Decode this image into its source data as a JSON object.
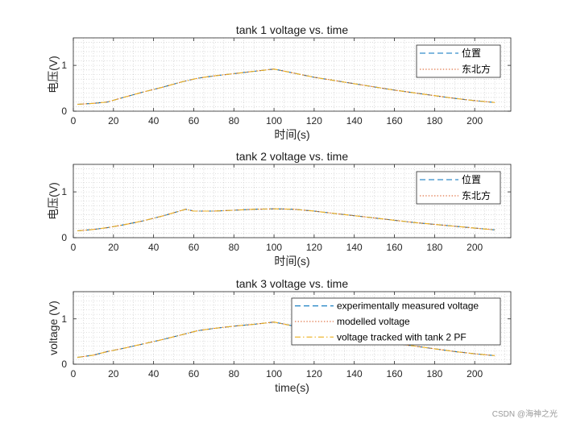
{
  "watermark": "CSDN @海神之光",
  "colors": {
    "measured": "#0072BD",
    "modelled": "#D95319",
    "tracked": "#EDB120",
    "axis": "#262626",
    "grid": "#b0b0b0"
  },
  "chart_data": [
    {
      "type": "line",
      "title": "tank 1 voltage vs. time",
      "xlabel": "时间(s)",
      "ylabel": "电压(V)",
      "xlim": [
        0,
        218
      ],
      "ylim": [
        0,
        1.6
      ],
      "xticks": [
        0,
        20,
        40,
        60,
        80,
        100,
        120,
        140,
        160,
        180,
        200
      ],
      "yticks": [
        0,
        1
      ],
      "grid": true,
      "legend_position": "top-right",
      "series": [
        {
          "name": "位置",
          "style": "dashed",
          "color": "#0072BD",
          "x": [
            2,
            10,
            17,
            25,
            35,
            45,
            55,
            62,
            70,
            80,
            90,
            100,
            110,
            120,
            130,
            140,
            150,
            160,
            170,
            180,
            190,
            200,
            210
          ],
          "y": [
            0.15,
            0.17,
            0.2,
            0.3,
            0.42,
            0.53,
            0.65,
            0.72,
            0.77,
            0.82,
            0.87,
            0.92,
            0.83,
            0.74,
            0.67,
            0.6,
            0.53,
            0.46,
            0.4,
            0.34,
            0.28,
            0.23,
            0.19
          ]
        },
        {
          "name": "东北方",
          "style": "dotted",
          "color": "#D95319",
          "x": [
            2,
            10,
            17,
            25,
            35,
            45,
            55,
            62,
            70,
            80,
            90,
            100,
            110,
            120,
            130,
            140,
            150,
            160,
            170,
            180,
            190,
            200,
            210
          ],
          "y": [
            0.15,
            0.17,
            0.2,
            0.3,
            0.42,
            0.53,
            0.65,
            0.72,
            0.77,
            0.82,
            0.87,
            0.92,
            0.83,
            0.74,
            0.67,
            0.6,
            0.53,
            0.46,
            0.4,
            0.34,
            0.28,
            0.23,
            0.19
          ]
        },
        {
          "name": "",
          "style": "dashdot",
          "color": "#EDB120",
          "in_legend": false,
          "x": [
            2,
            10,
            17,
            25,
            35,
            45,
            55,
            62,
            70,
            80,
            90,
            100,
            110,
            120,
            130,
            140,
            150,
            160,
            170,
            180,
            190,
            200,
            210
          ],
          "y": [
            0.15,
            0.17,
            0.2,
            0.3,
            0.42,
            0.53,
            0.65,
            0.72,
            0.77,
            0.82,
            0.87,
            0.92,
            0.83,
            0.74,
            0.67,
            0.6,
            0.53,
            0.46,
            0.4,
            0.34,
            0.28,
            0.23,
            0.19
          ]
        }
      ]
    },
    {
      "type": "line",
      "title": "tank 2 voltage vs. time",
      "xlabel": "时间(s)",
      "ylabel": "电压(V)",
      "xlim": [
        0,
        218
      ],
      "ylim": [
        0,
        1.6
      ],
      "xticks": [
        0,
        20,
        40,
        60,
        80,
        100,
        120,
        140,
        160,
        180,
        200
      ],
      "yticks": [
        0,
        1
      ],
      "grid": true,
      "legend_position": "top-right",
      "series": [
        {
          "name": "位置",
          "style": "dashed",
          "color": "#0072BD",
          "x": [
            2,
            10,
            17,
            25,
            35,
            45,
            56,
            60,
            70,
            80,
            90,
            100,
            110,
            120,
            130,
            140,
            150,
            160,
            170,
            180,
            190,
            200,
            210
          ],
          "y": [
            0.15,
            0.18,
            0.22,
            0.28,
            0.37,
            0.48,
            0.62,
            0.58,
            0.58,
            0.6,
            0.62,
            0.63,
            0.62,
            0.58,
            0.53,
            0.48,
            0.43,
            0.38,
            0.33,
            0.29,
            0.25,
            0.21,
            0.17
          ]
        },
        {
          "name": "东北方",
          "style": "dotted",
          "color": "#D95319",
          "x": [
            2,
            10,
            17,
            25,
            35,
            45,
            56,
            60,
            70,
            80,
            90,
            100,
            110,
            120,
            130,
            140,
            150,
            160,
            170,
            180,
            190,
            200,
            210
          ],
          "y": [
            0.15,
            0.18,
            0.22,
            0.28,
            0.37,
            0.48,
            0.62,
            0.58,
            0.58,
            0.6,
            0.62,
            0.63,
            0.62,
            0.58,
            0.53,
            0.48,
            0.43,
            0.38,
            0.33,
            0.29,
            0.25,
            0.21,
            0.17
          ]
        },
        {
          "name": "",
          "style": "dashdot",
          "color": "#EDB120",
          "in_legend": false,
          "x": [
            2,
            10,
            17,
            25,
            35,
            45,
            56,
            60,
            70,
            80,
            90,
            100,
            110,
            120,
            130,
            140,
            150,
            160,
            170,
            180,
            190,
            200,
            210
          ],
          "y": [
            0.15,
            0.18,
            0.22,
            0.28,
            0.37,
            0.48,
            0.62,
            0.58,
            0.58,
            0.6,
            0.62,
            0.63,
            0.62,
            0.58,
            0.53,
            0.48,
            0.43,
            0.38,
            0.33,
            0.29,
            0.25,
            0.21,
            0.17
          ]
        }
      ]
    },
    {
      "type": "line",
      "title": "tank 3 voltage vs. time",
      "xlabel": "time(s)",
      "ylabel": "voltage (V)",
      "xlim": [
        0,
        218
      ],
      "ylim": [
        0,
        1.6
      ],
      "xticks": [
        0,
        20,
        40,
        60,
        80,
        100,
        120,
        140,
        160,
        180,
        200
      ],
      "yticks": [
        0,
        1
      ],
      "grid": true,
      "legend_position": "top-right",
      "series": [
        {
          "name": "experimentally measured voltage",
          "style": "dashed",
          "color": "#0072BD",
          "x": [
            2,
            10,
            17,
            25,
            35,
            45,
            55,
            62,
            70,
            80,
            90,
            100,
            110,
            120,
            130,
            140,
            150,
            160,
            170,
            180,
            190,
            200,
            210
          ],
          "y": [
            0.15,
            0.2,
            0.28,
            0.35,
            0.45,
            0.55,
            0.66,
            0.74,
            0.79,
            0.84,
            0.88,
            0.93,
            0.84,
            0.75,
            0.68,
            0.6,
            0.53,
            0.46,
            0.4,
            0.34,
            0.28,
            0.23,
            0.19
          ]
        },
        {
          "name": "modelled voltage",
          "style": "dotted",
          "color": "#D95319",
          "x": [
            2,
            10,
            17,
            25,
            35,
            45,
            55,
            62,
            70,
            80,
            90,
            100,
            110,
            120,
            130,
            140,
            150,
            160,
            170,
            180,
            190,
            200,
            210
          ],
          "y": [
            0.15,
            0.2,
            0.28,
            0.35,
            0.45,
            0.55,
            0.66,
            0.74,
            0.79,
            0.84,
            0.88,
            0.93,
            0.84,
            0.75,
            0.68,
            0.6,
            0.53,
            0.46,
            0.4,
            0.34,
            0.28,
            0.23,
            0.19
          ]
        },
        {
          "name": "voltage tracked with tank 2 PF",
          "style": "dashdot",
          "color": "#EDB120",
          "x": [
            2,
            10,
            17,
            25,
            35,
            45,
            55,
            62,
            70,
            80,
            90,
            100,
            110,
            120,
            130,
            140,
            150,
            160,
            170,
            180,
            190,
            200,
            210
          ],
          "y": [
            0.15,
            0.2,
            0.28,
            0.35,
            0.45,
            0.55,
            0.66,
            0.74,
            0.79,
            0.84,
            0.88,
            0.93,
            0.84,
            0.75,
            0.68,
            0.6,
            0.53,
            0.46,
            0.4,
            0.34,
            0.28,
            0.23,
            0.19
          ]
        }
      ]
    }
  ]
}
